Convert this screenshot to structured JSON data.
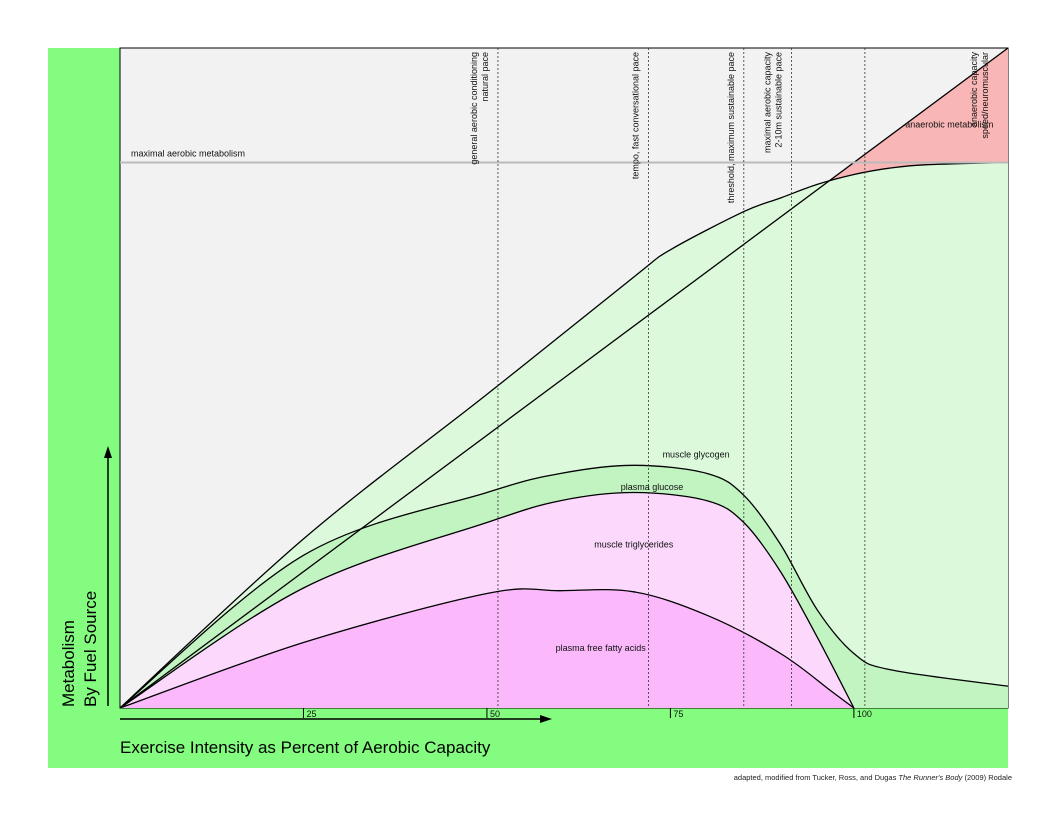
{
  "chart_data": {
    "type": "area",
    "title": "",
    "xlabel": "Exercise Intensity as Percent of Aerobic Capacity",
    "ylabel_line1": "Metabolism",
    "ylabel_line2": "By Fuel Source",
    "xlim": [
      0,
      121
    ],
    "ylim": [
      0,
      121
    ],
    "x_ticks": [
      25,
      50,
      75,
      100
    ],
    "x_tick_labels": [
      "25",
      "50",
      "75",
      "100"
    ],
    "maximal_aerobic_metabolism": {
      "y": 100,
      "label": "maximal aerobic metabolism"
    },
    "series": [
      {
        "name": "plasma free fatty acids",
        "color": "#fbb9fb",
        "x": [
          0,
          25,
          50,
          60,
          70,
          80,
          90,
          97,
          100
        ],
        "y": [
          0,
          12,
          21,
          21.5,
          21.3,
          17,
          10,
          3,
          0
        ]
      },
      {
        "name": "muscle triglycerides",
        "color": "#fcd9fc",
        "x": [
          0,
          25,
          50,
          60,
          70,
          80,
          85,
          90,
          95,
          100
        ],
        "y": [
          0,
          22,
          34,
          38,
          39.5,
          38,
          34,
          25,
          13,
          0
        ]
      },
      {
        "name": "plasma glucose",
        "color": "#c2f4c2",
        "x": [
          0,
          25,
          50,
          60,
          70,
          80,
          85,
          90,
          95,
          100,
          105,
          121
        ],
        "y": [
          0,
          28,
          39.5,
          43,
          44.5,
          43,
          39,
          30,
          18,
          10,
          7,
          4
        ]
      },
      {
        "name": "muscle glycogen",
        "color": "#dcf9dc",
        "x": [
          0,
          25,
          50,
          70,
          75,
          85,
          90,
          95,
          100,
          105,
          110,
          121
        ],
        "y": [
          0,
          31,
          57.5,
          79,
          84,
          91,
          93.5,
          96,
          97.8,
          99,
          99.6,
          100
        ]
      },
      {
        "name": "anaerobic metabolism",
        "color": "#f9b6b6",
        "x": [
          0,
          121
        ],
        "y": [
          0,
          121
        ]
      }
    ],
    "intensity_zones": [
      {
        "x": 51.5,
        "label_lines": [
          "general aerobic conditioning",
          "natural pace"
        ]
      },
      {
        "x": 72,
        "label_lines": [
          "tempo, fast conversational pace"
        ]
      },
      {
        "x": 85,
        "label_lines": [
          "threshold, maximum sustainable pace"
        ]
      },
      {
        "x": 91.5,
        "label_lines": [
          "maximal aerobic capacity",
          "2-10m sustainable pace"
        ]
      },
      {
        "x": 101.5,
        "label_lines": []
      }
    ],
    "upper_right_label_lines": [
      "anaerobic capacity",
      "speed/neuromuscular"
    ],
    "annotations": [
      {
        "text": "muscle glycogen",
        "x": 78.5,
        "y": 46.5
      },
      {
        "text": "plasma glucose",
        "x": 72.5,
        "y": 40.5
      },
      {
        "text": "muscle triglycerides",
        "x": 70,
        "y": 30
      },
      {
        "text": "plasma free fatty acids",
        "x": 65.5,
        "y": 11
      },
      {
        "text": "anaerobic metabolism",
        "x": 113,
        "y": 107
      }
    ],
    "grid": false,
    "colors": {
      "frame_green": "#83fc7f",
      "plot_background": "#f2f2f2",
      "baseline_gray": "#bbbbbb"
    }
  },
  "credit": {
    "prefix": "adapted, modified from Tucker, Ross, and Dugas ",
    "book": "The Runner's Body",
    "suffix": " (2009) Rodale"
  }
}
